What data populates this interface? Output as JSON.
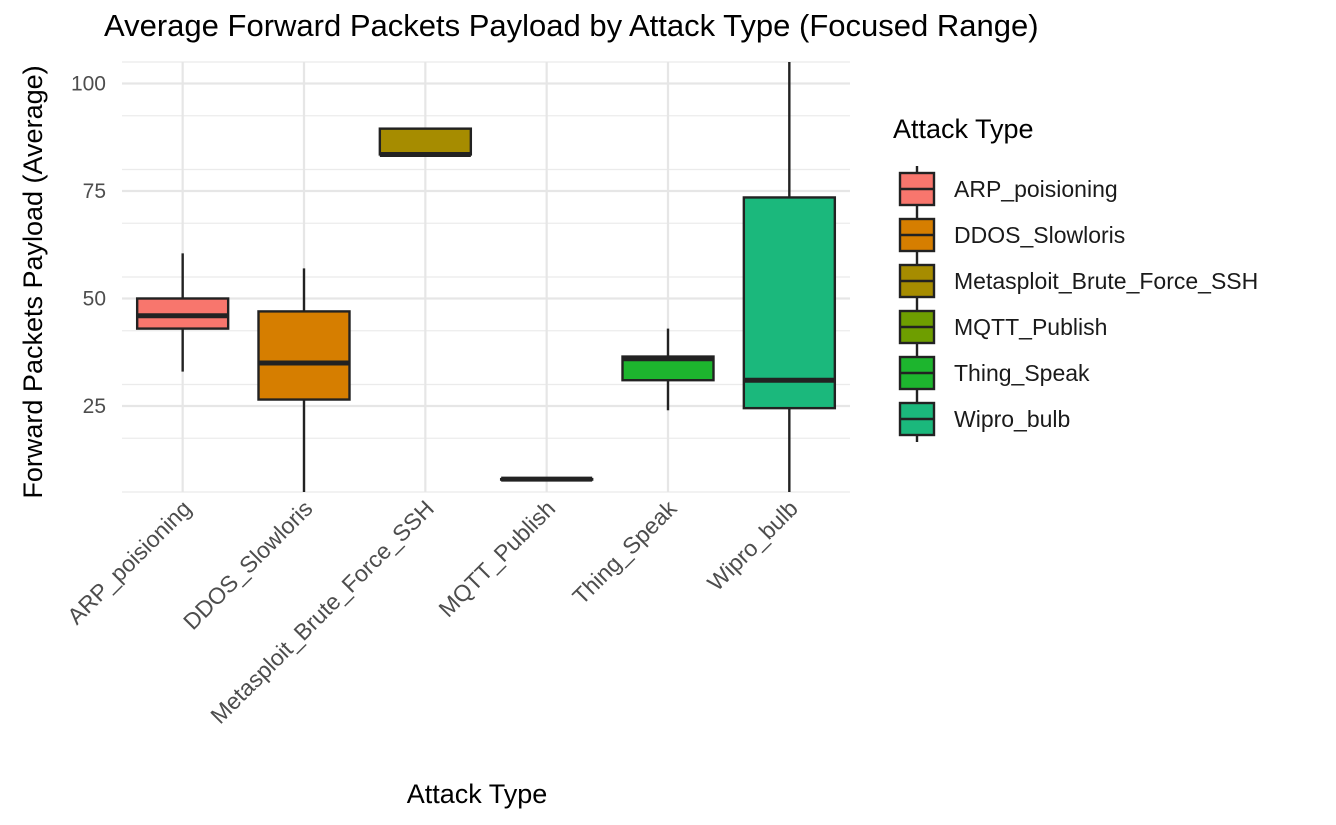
{
  "chart_data": {
    "type": "box",
    "title": "Average Forward Packets Payload by Attack Type (Focused Range)",
    "xlabel": "Attack Type",
    "ylabel": "Forward Packets Payload (Average)",
    "ylim": [
      5,
      105
    ],
    "yticks": [
      25,
      50,
      75,
      100
    ],
    "grid": true,
    "legend": {
      "title": "Attack Type",
      "position": "right"
    },
    "categories": [
      "ARP_poisioning",
      "DDOS_Slowloris",
      "Metasploit_Brute_Force_SSH",
      "MQTT_Publish",
      "Thing_Speak",
      "Wipro_bulb"
    ],
    "colors": [
      "#F8766D",
      "#C49A00",
      "#A3A500",
      "#53B400",
      "#00C094",
      "#00BF7D"
    ],
    "boxes": [
      {
        "category": "ARP_poisioning",
        "color": "#F8766D",
        "whisker_low": 33,
        "q1": 43,
        "median": 46,
        "q3": 50,
        "whisker_high": 60.5
      },
      {
        "category": "DDOS_Slowloris",
        "color": "#D67E00",
        "whisker_low": 5,
        "q1": 26.5,
        "median": 35,
        "q3": 47,
        "whisker_high": 57
      },
      {
        "category": "Metasploit_Brute_Force_SSH",
        "color": "#A68C00",
        "whisker_low": 83.5,
        "q1": 83.5,
        "median": 83.5,
        "q3": 89.5,
        "whisker_high": 89.5
      },
      {
        "category": "MQTT_Publish",
        "color": "#6E9E00",
        "whisker_low": 8,
        "q1": 8,
        "median": 8,
        "q3": 8,
        "whisker_high": 8
      },
      {
        "category": "Thing_Speak",
        "color": "#1DB52E",
        "whisker_low": 24,
        "q1": 31,
        "median": 36,
        "q3": 36.5,
        "whisker_high": 43
      },
      {
        "category": "Wipro_bulb",
        "color": "#1BB87C",
        "whisker_low": 5,
        "q1": 24.5,
        "median": 31,
        "q3": 73.5,
        "whisker_high": 105
      }
    ]
  }
}
